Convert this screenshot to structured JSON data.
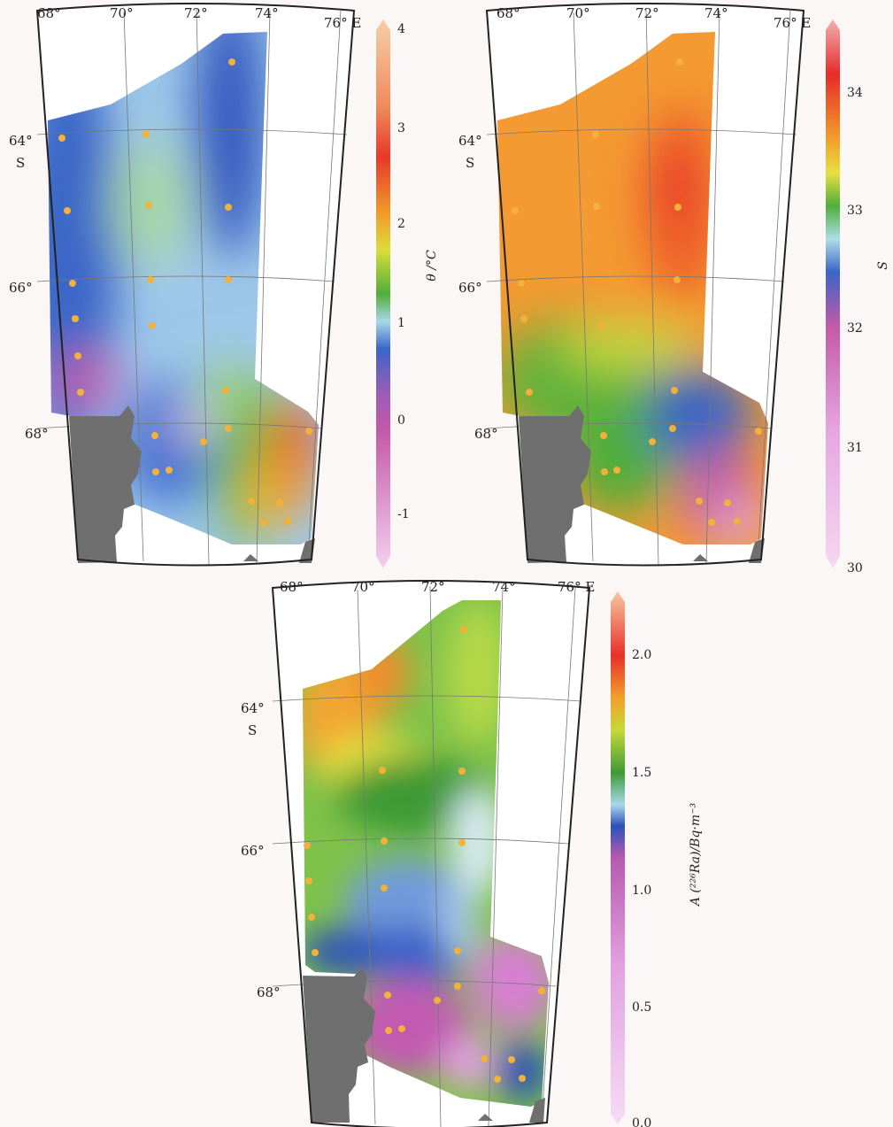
{
  "maps": [
    {
      "id": "theta",
      "lon_labels": [
        "68°",
        "70°",
        "72°",
        "74°",
        "76° E"
      ],
      "lat_labels": [
        "64°",
        "S",
        "66°",
        "68°"
      ],
      "colorbar": {
        "label": "θ /°C",
        "ticks": [
          "4",
          "3",
          "2",
          "1",
          "0",
          "-1"
        ],
        "range": [
          -1.5,
          4
        ]
      }
    },
    {
      "id": "salinity",
      "lon_labels": [
        "68°",
        "70°",
        "72°",
        "74°",
        "76° E"
      ],
      "lat_labels": [
        "64°",
        "S",
        "66°",
        "68°"
      ],
      "colorbar": {
        "label": "S",
        "ticks": [
          "34",
          "33",
          "32",
          "31",
          "30"
        ],
        "range": [
          30,
          34.5
        ]
      }
    },
    {
      "id": "radium",
      "lon_labels": [
        "68°",
        "70°",
        "72°",
        "74°",
        "76° E"
      ],
      "lat_labels": [
        "64°",
        "S",
        "66°",
        "68°"
      ],
      "colorbar": {
        "label": "A (²²⁶Ra)/Bq·m⁻³",
        "ticks": [
          "2.0",
          "1.5",
          "1.0",
          "0.5",
          "0.0"
        ],
        "range": [
          0,
          2.2
        ]
      }
    }
  ],
  "colors": {
    "land": "#6f6f6f",
    "station": "#f2b13a",
    "frame": "#222222",
    "grid": "#777777"
  }
}
